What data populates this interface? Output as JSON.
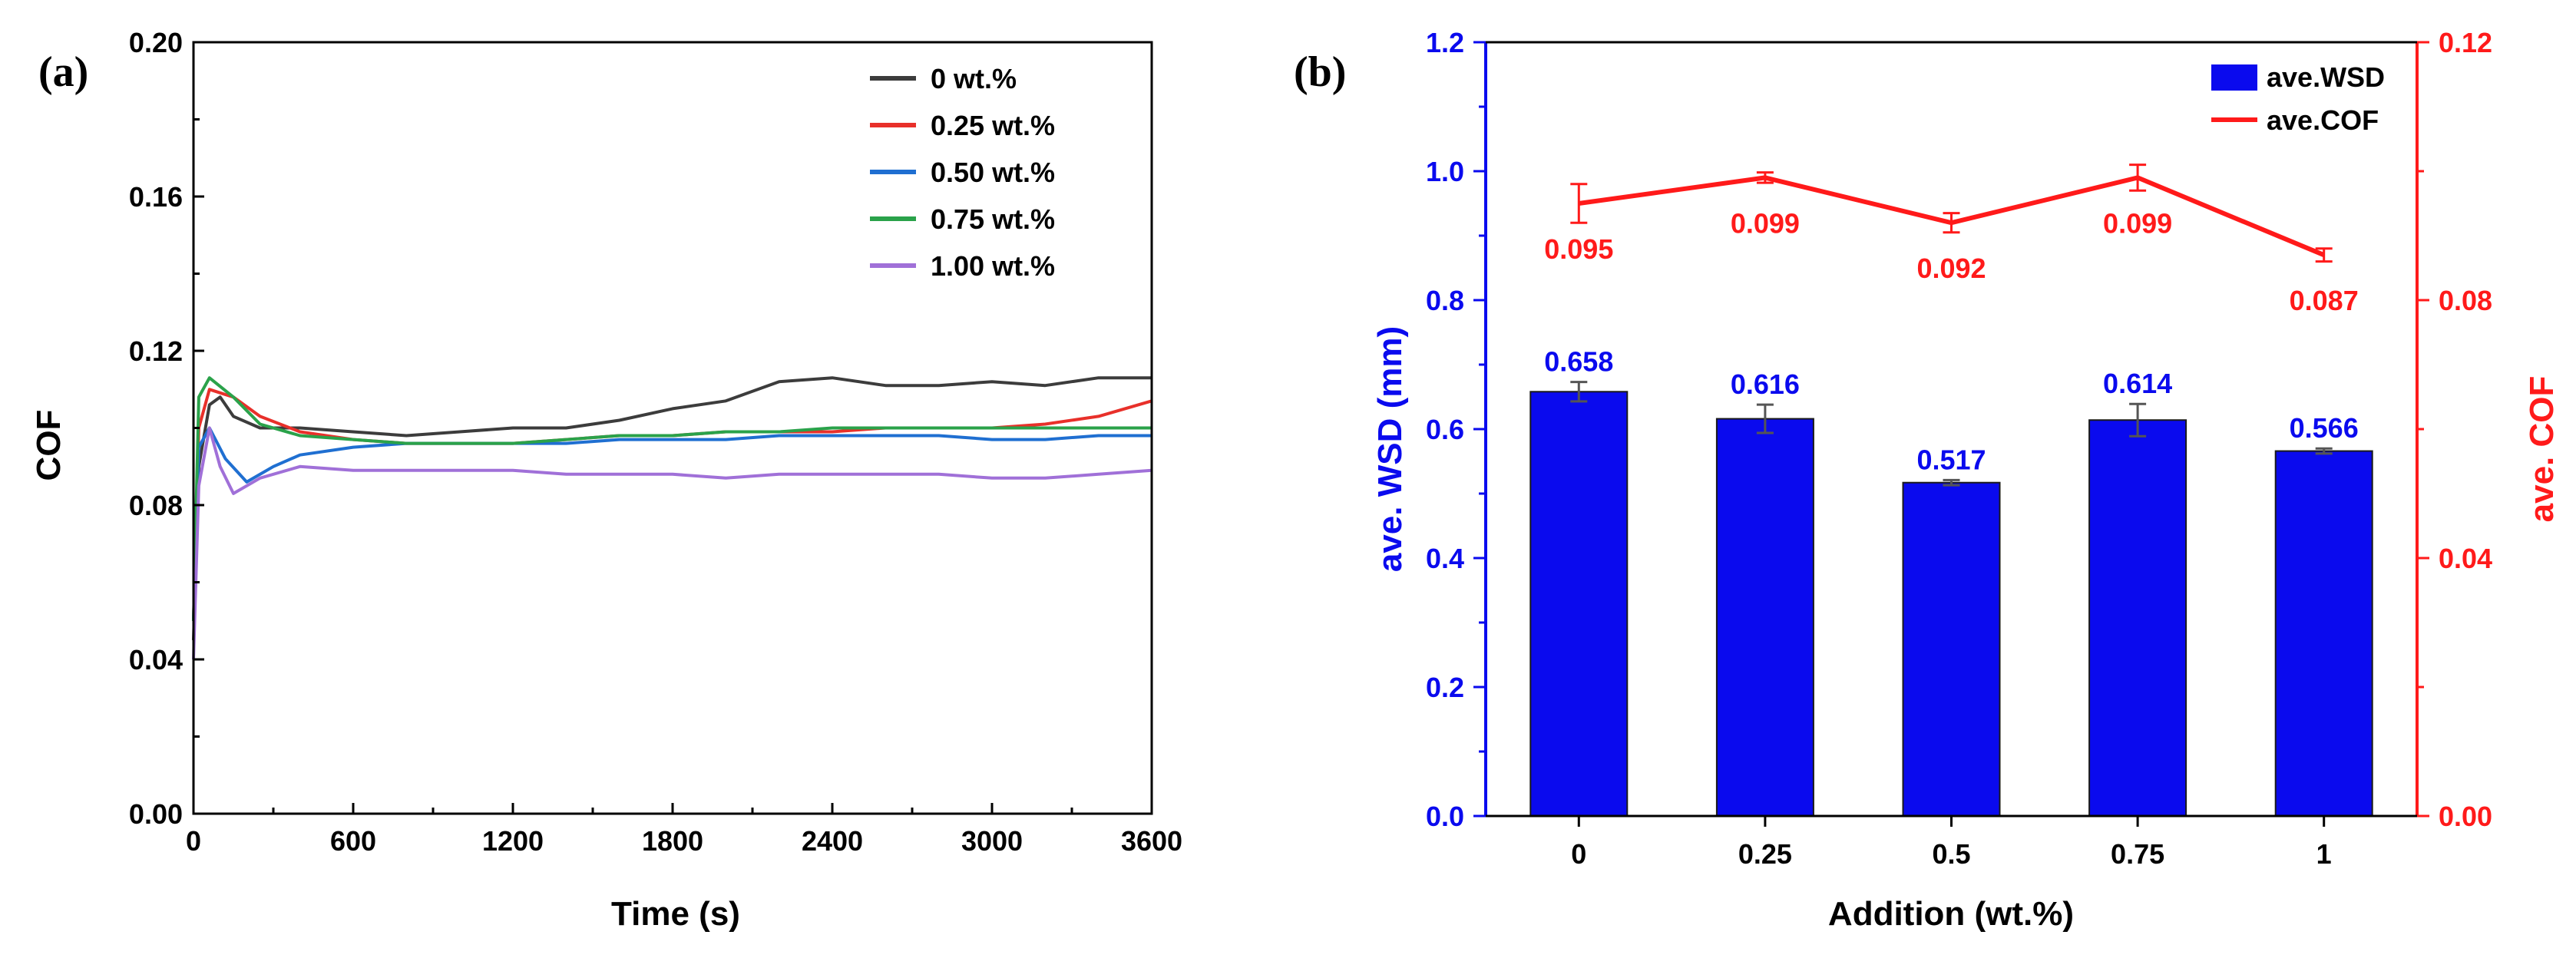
{
  "chart_data": [
    {
      "panel_label": "(a)",
      "type": "line",
      "xlabel": "Time (s)",
      "ylabel": "COF",
      "xlim": [
        0,
        3600
      ],
      "ylim": [
        0,
        0.2
      ],
      "x_ticks": [
        0,
        600,
        1200,
        1800,
        2400,
        3000,
        3600
      ],
      "y_ticks": [
        0.0,
        0.04,
        0.08,
        0.12,
        0.16,
        0.2
      ],
      "x_tick_labels": [
        "0",
        "600",
        "1200",
        "1800",
        "2400",
        "3000",
        "3600"
      ],
      "y_tick_labels": [
        "0.00",
        "0.04",
        "0.08",
        "0.12",
        "0.16",
        "0.20"
      ],
      "grid": false,
      "legend": "top-right",
      "series": [
        {
          "name": "0 wt.%",
          "color": "#3c3c3c",
          "points": [
            [
              0,
              0.045
            ],
            [
              20,
              0.09
            ],
            [
              60,
              0.106
            ],
            [
              100,
              0.108
            ],
            [
              150,
              0.103
            ],
            [
              250,
              0.1
            ],
            [
              400,
              0.1
            ],
            [
              600,
              0.099
            ],
            [
              800,
              0.098
            ],
            [
              1000,
              0.099
            ],
            [
              1200,
              0.1
            ],
            [
              1400,
              0.1
            ],
            [
              1600,
              0.102
            ],
            [
              1800,
              0.105
            ],
            [
              2000,
              0.107
            ],
            [
              2200,
              0.112
            ],
            [
              2400,
              0.113
            ],
            [
              2600,
              0.111
            ],
            [
              2800,
              0.111
            ],
            [
              3000,
              0.112
            ],
            [
              3200,
              0.111
            ],
            [
              3400,
              0.113
            ],
            [
              3600,
              0.113
            ]
          ]
        },
        {
          "name": "0.25 wt.%",
          "color": "#e8302a",
          "points": [
            [
              0,
              0.05
            ],
            [
              20,
              0.1
            ],
            [
              60,
              0.11
            ],
            [
              150,
              0.108
            ],
            [
              250,
              0.103
            ],
            [
              400,
              0.099
            ],
            [
              600,
              0.097
            ],
            [
              800,
              0.096
            ],
            [
              1000,
              0.096
            ],
            [
              1200,
              0.096
            ],
            [
              1400,
              0.097
            ],
            [
              1600,
              0.098
            ],
            [
              1800,
              0.098
            ],
            [
              2000,
              0.099
            ],
            [
              2200,
              0.099
            ],
            [
              2400,
              0.099
            ],
            [
              2600,
              0.1
            ],
            [
              2800,
              0.1
            ],
            [
              3000,
              0.1
            ],
            [
              3200,
              0.101
            ],
            [
              3400,
              0.103
            ],
            [
              3600,
              0.107
            ]
          ]
        },
        {
          "name": "0.50 wt.%",
          "color": "#1f6fd1",
          "points": [
            [
              0,
              0.05
            ],
            [
              20,
              0.095
            ],
            [
              60,
              0.1
            ],
            [
              120,
              0.092
            ],
            [
              200,
              0.086
            ],
            [
              300,
              0.09
            ],
            [
              400,
              0.093
            ],
            [
              600,
              0.095
            ],
            [
              800,
              0.096
            ],
            [
              1000,
              0.096
            ],
            [
              1200,
              0.096
            ],
            [
              1400,
              0.096
            ],
            [
              1600,
              0.097
            ],
            [
              1800,
              0.097
            ],
            [
              2000,
              0.097
            ],
            [
              2200,
              0.098
            ],
            [
              2400,
              0.098
            ],
            [
              2600,
              0.098
            ],
            [
              2800,
              0.098
            ],
            [
              3000,
              0.097
            ],
            [
              3200,
              0.097
            ],
            [
              3400,
              0.098
            ],
            [
              3600,
              0.098
            ]
          ]
        },
        {
          "name": "0.75 wt.%",
          "color": "#2aa24a",
          "points": [
            [
              0,
              0.05
            ],
            [
              20,
              0.108
            ],
            [
              60,
              0.113
            ],
            [
              150,
              0.108
            ],
            [
              250,
              0.101
            ],
            [
              400,
              0.098
            ],
            [
              600,
              0.097
            ],
            [
              800,
              0.096
            ],
            [
              1000,
              0.096
            ],
            [
              1200,
              0.096
            ],
            [
              1400,
              0.097
            ],
            [
              1600,
              0.098
            ],
            [
              1800,
              0.098
            ],
            [
              2000,
              0.099
            ],
            [
              2200,
              0.099
            ],
            [
              2400,
              0.1
            ],
            [
              2600,
              0.1
            ],
            [
              2800,
              0.1
            ],
            [
              3000,
              0.1
            ],
            [
              3200,
              0.1
            ],
            [
              3400,
              0.1
            ],
            [
              3600,
              0.1
            ]
          ]
        },
        {
          "name": "1.00 wt.%",
          "color": "#a070d8",
          "points": [
            [
              0,
              0.04
            ],
            [
              20,
              0.085
            ],
            [
              60,
              0.1
            ],
            [
              100,
              0.09
            ],
            [
              150,
              0.083
            ],
            [
              250,
              0.087
            ],
            [
              400,
              0.09
            ],
            [
              600,
              0.089
            ],
            [
              800,
              0.089
            ],
            [
              1000,
              0.089
            ],
            [
              1200,
              0.089
            ],
            [
              1400,
              0.088
            ],
            [
              1600,
              0.088
            ],
            [
              1800,
              0.088
            ],
            [
              2000,
              0.087
            ],
            [
              2200,
              0.088
            ],
            [
              2400,
              0.088
            ],
            [
              2600,
              0.088
            ],
            [
              2800,
              0.088
            ],
            [
              3000,
              0.087
            ],
            [
              3200,
              0.087
            ],
            [
              3400,
              0.088
            ],
            [
              3600,
              0.089
            ]
          ]
        }
      ]
    },
    {
      "panel_label": "(b)",
      "type": "bar",
      "xlabel": "Addition (wt.%)",
      "categories": [
        "0",
        "0.25",
        "0.5",
        "0.75",
        "1"
      ],
      "ylabel": "ave. WSD (mm)",
      "ylabel_right": "ave. COF",
      "ylim": [
        0,
        1.2
      ],
      "ylim_right": [
        0,
        0.12
      ],
      "y_ticks": [
        0.0,
        0.2,
        0.4,
        0.6,
        0.8,
        1.0,
        1.2
      ],
      "y_tick_labels": [
        "0.0",
        "0.2",
        "0.4",
        "0.6",
        "0.8",
        "1.0",
        "1.2"
      ],
      "y_ticks_right": [
        0.0,
        0.04,
        0.08,
        0.12
      ],
      "y_tick_labels_right": [
        "0.00",
        "0.04",
        "0.08",
        "0.12"
      ],
      "grid": false,
      "legend": "top-right",
      "series": [
        {
          "name": "ave.WSD",
          "kind": "bar",
          "axis": "left",
          "color": "#0a0aee",
          "values": [
            0.658,
            0.616,
            0.517,
            0.614,
            0.566
          ],
          "errors": [
            0.015,
            0.022,
            0.004,
            0.025,
            0.004
          ],
          "labels": [
            "0.658",
            "0.616",
            "0.517",
            "0.614",
            "0.566"
          ]
        },
        {
          "name": "ave.COF",
          "kind": "line",
          "axis": "right",
          "color": "#ff1a1a",
          "values": [
            0.095,
            0.099,
            0.092,
            0.099,
            0.087
          ],
          "errors": [
            0.003,
            0.0008,
            0.0015,
            0.002,
            0.001
          ],
          "labels": [
            "0.095",
            "0.099",
            "0.092",
            "0.099",
            "0.087"
          ]
        }
      ]
    }
  ]
}
